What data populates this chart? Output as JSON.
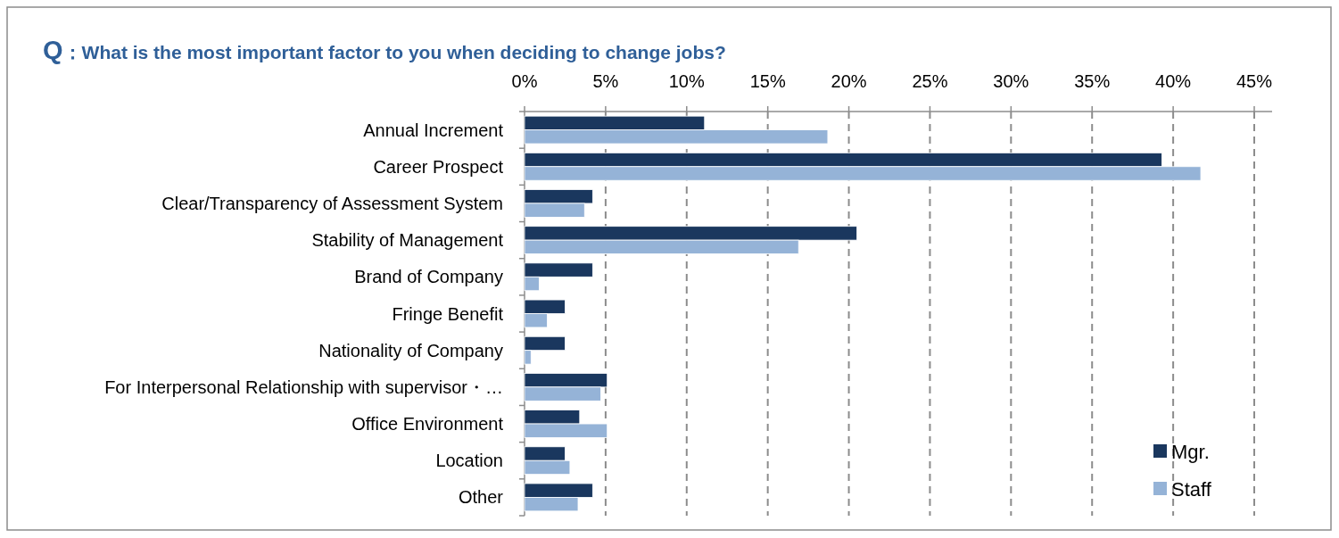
{
  "chart_data": {
    "type": "bar",
    "orientation": "horizontal",
    "title": "Q：What is the most important factor to you when deciding to change jobs?",
    "categories": [
      "Annual Increment",
      "Career Prospect",
      "Clear/Transparency of Assessment System",
      "Stability of Management",
      "Brand of Company",
      "Fringe Benefit",
      "Nationality of Company",
      "For Interpersonal Relationship with supervisor・…",
      "Office Environment",
      "Location",
      "Other"
    ],
    "series": [
      {
        "name": "Mgr.",
        "color": "#1a375e",
        "values": [
          11.1,
          39.3,
          4.2,
          20.5,
          4.2,
          2.5,
          2.5,
          5.1,
          3.4,
          2.5,
          4.2
        ]
      },
      {
        "name": "Staff",
        "color": "#95b3d7",
        "values": [
          18.7,
          41.7,
          3.7,
          16.9,
          0.9,
          1.4,
          0.4,
          4.7,
          5.1,
          2.8,
          3.3
        ]
      }
    ],
    "xlim": [
      0,
      45
    ],
    "xticks": [
      {
        "value": 0,
        "label": "0%"
      },
      {
        "value": 5,
        "label": "5%"
      },
      {
        "value": 10,
        "label": "10%"
      },
      {
        "value": 15,
        "label": "15%"
      },
      {
        "value": 20,
        "label": "20%"
      },
      {
        "value": 25,
        "label": "25%"
      },
      {
        "value": 30,
        "label": "30%"
      },
      {
        "value": 35,
        "label": "35%"
      },
      {
        "value": 40,
        "label": "40%"
      },
      {
        "value": 45,
        "label": "45%"
      }
    ],
    "grid": "x",
    "legend": "bottom right"
  }
}
